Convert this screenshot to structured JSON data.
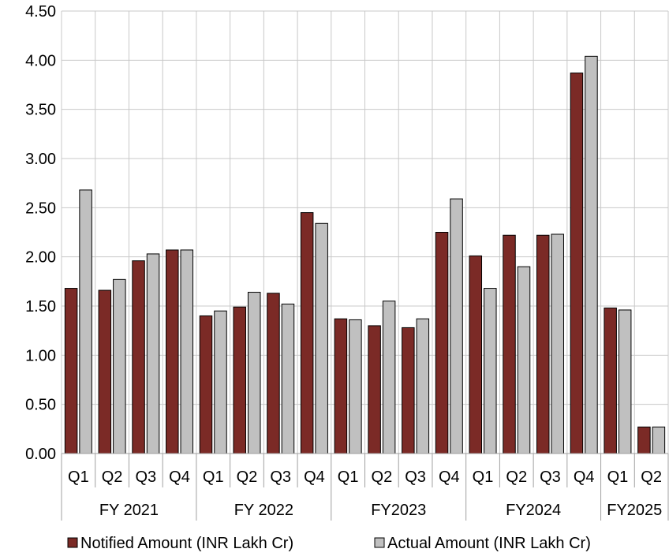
{
  "chart_data": {
    "type": "bar",
    "groups": [
      {
        "label": "FY 2021",
        "quarters": [
          "Q1",
          "Q2",
          "Q3",
          "Q4"
        ]
      },
      {
        "label": "FY 2022",
        "quarters": [
          "Q1",
          "Q2",
          "Q3",
          "Q4"
        ]
      },
      {
        "label": "FY2023",
        "quarters": [
          "Q1",
          "Q2",
          "Q3",
          "Q4"
        ]
      },
      {
        "label": "FY2024",
        "quarters": [
          "Q1",
          "Q2",
          "Q3",
          "Q4"
        ]
      },
      {
        "label": "FY2025",
        "quarters": [
          "Q1",
          "Q2"
        ]
      }
    ],
    "series": [
      {
        "name": "Notified Amount (INR Lakh Cr)",
        "color": "#7b2a26",
        "values": [
          1.68,
          1.66,
          1.96,
          2.07,
          1.4,
          1.49,
          1.63,
          2.45,
          1.37,
          1.3,
          1.28,
          2.25,
          2.01,
          2.22,
          2.22,
          3.87,
          1.48,
          0.27
        ]
      },
      {
        "name": "Actual Amount (INR Lakh Cr)",
        "color": "#c0c0c0",
        "values": [
          2.68,
          1.77,
          2.03,
          2.07,
          1.45,
          1.64,
          1.52,
          2.34,
          1.36,
          1.55,
          1.37,
          2.59,
          1.68,
          1.9,
          2.23,
          4.04,
          1.46,
          0.27
        ]
      }
    ],
    "yticks": [
      "0.00",
      "0.50",
      "1.00",
      "1.50",
      "2.00",
      "2.50",
      "3.00",
      "3.50",
      "4.00",
      "4.50"
    ],
    "ylim": [
      0,
      4.5
    ],
    "grid": true,
    "legend_position": "bottom",
    "title": "",
    "xlabel": "",
    "ylabel": ""
  }
}
